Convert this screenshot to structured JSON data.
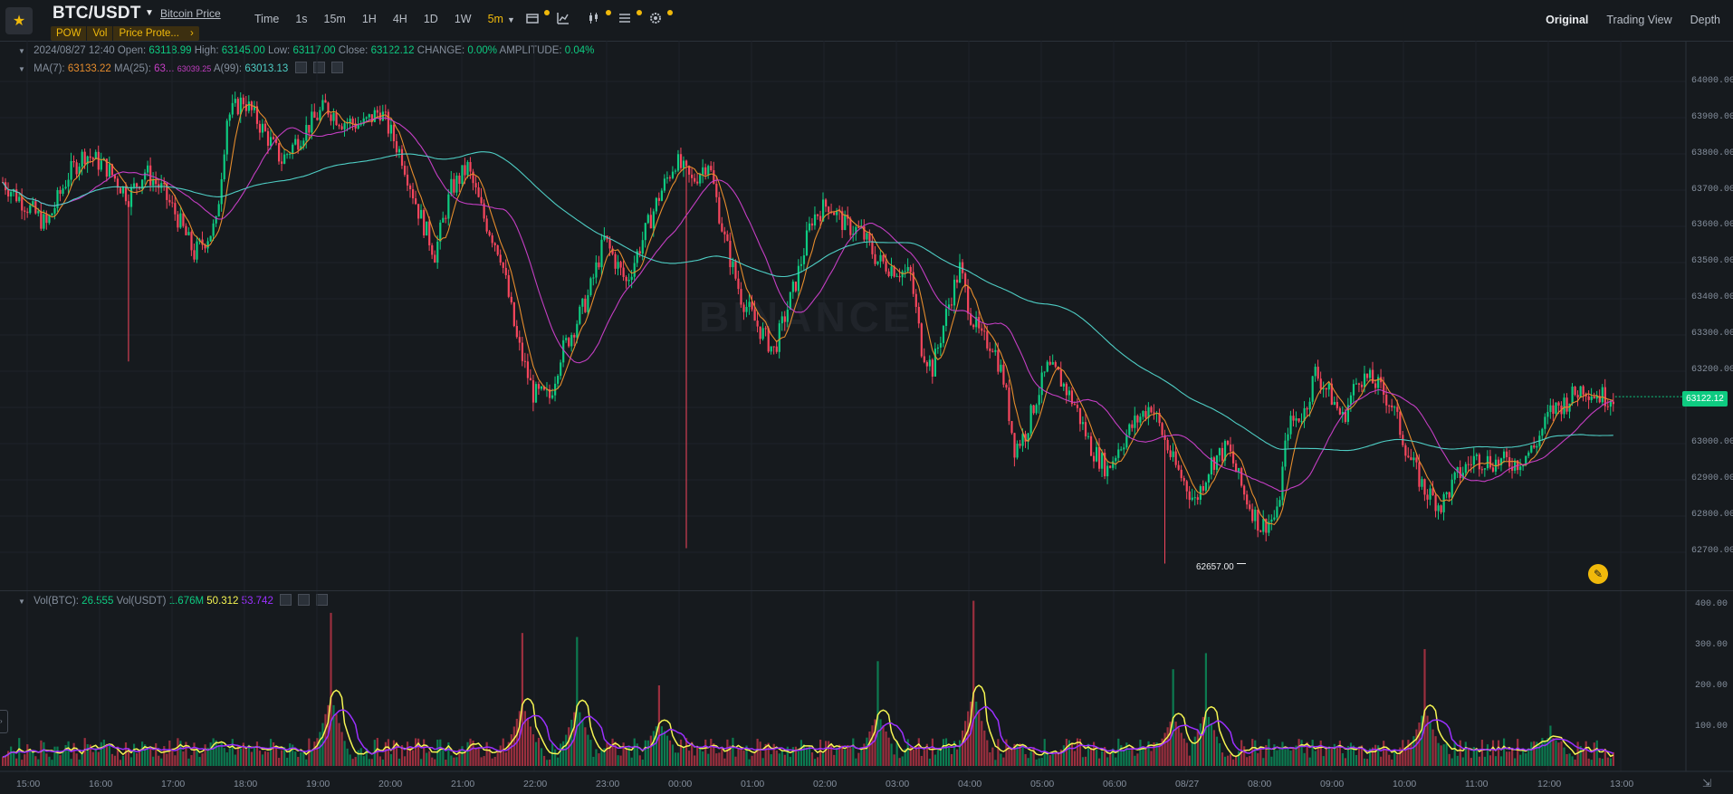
{
  "header": {
    "pair": "BTC/USDT",
    "price_link": "Bitcoin Price",
    "tags": [
      "POW",
      "Vol",
      "Price Prote...",
      "›"
    ],
    "intervals": [
      "Time",
      "1s",
      "15m",
      "1H",
      "4H",
      "1D",
      "1W",
      "5m"
    ],
    "active_interval": "5m",
    "views": [
      "Original",
      "Trading View",
      "Depth"
    ],
    "active_view": "Original",
    "tool_icons": [
      "indicator-icon",
      "chart-type-icon",
      "candle-settings-icon",
      "layout-icon",
      "settings-icon"
    ]
  },
  "ohlc": {
    "datetime": "2024/08/27 12:40",
    "open_label": "Open:",
    "open": "63118.99",
    "high_label": "High:",
    "high": "63145.00",
    "low_label": "Low:",
    "low": "63117.00",
    "close_label": "Close:",
    "close": "63122.12",
    "change_label": "CHANGE:",
    "change": "0.00%",
    "amplitude_label": "AMPLITUDE:",
    "amplitude": "0.04%"
  },
  "ma": {
    "ma7_label": "MA(7):",
    "ma7": "63133.22",
    "ma25_label": "MA(25):",
    "ma25": "63...",
    "ma99_label": "A(99):",
    "ma99": "63013.13",
    "overlap_text": "63039.25"
  },
  "volume": {
    "label_btc": "Vol(BTC):",
    "vol_btc": "26.555",
    "label_usdt": "Vol(USDT)",
    "vol_usdt": "1.676M",
    "ma1": "50.312",
    "ma2": "53.742"
  },
  "price_axis": [
    "64000.00",
    "63900.00",
    "63800.00",
    "63700.00",
    "63600.00",
    "63500.00",
    "63400.00",
    "63300.00",
    "63200.00",
    "63000.00",
    "62900.00",
    "62800.00",
    "62700.00"
  ],
  "volume_axis": [
    "400.00",
    "300.00",
    "200.00",
    "100.00"
  ],
  "time_axis": [
    "15:00",
    "16:00",
    "17:00",
    "18:00",
    "19:00",
    "20:00",
    "21:00",
    "22:00",
    "23:00",
    "00:00",
    "01:00",
    "02:00",
    "03:00",
    "04:00",
    "05:00",
    "06:00",
    "08/27",
    "08:00",
    "09:00",
    "10:00",
    "11:00",
    "12:00",
    "13:00"
  ],
  "current_price": "63122.12",
  "low_marker": "62657.00",
  "watermark": "BINANCE",
  "colors": {
    "up": "#0ecb81",
    "down": "#f6465d",
    "accent": "#f0b90b",
    "ma7": "#e58c2d",
    "ma25": "#c43ec3",
    "ma99": "#4ecdc4",
    "vma1": "#f5f552",
    "vma2": "#9b30ff"
  },
  "chart_data": {
    "type": "candlestick",
    "x_label": "",
    "y_label": "",
    "ylim": [
      62600,
      64060
    ],
    "price_path": [
      [
        0,
        63720
      ],
      [
        8,
        63660
      ],
      [
        16,
        63600
      ],
      [
        24,
        63740
      ],
      [
        30,
        63800
      ],
      [
        38,
        63760
      ],
      [
        46,
        63680
      ],
      [
        52,
        63750
      ],
      [
        58,
        63700
      ],
      [
        64,
        63620
      ],
      [
        70,
        63520
      ],
      [
        78,
        63600
      ],
      [
        82,
        63900
      ],
      [
        88,
        63950
      ],
      [
        94,
        63880
      ],
      [
        102,
        63780
      ],
      [
        110,
        63860
      ],
      [
        118,
        63930
      ],
      [
        124,
        63890
      ],
      [
        132,
        63880
      ],
      [
        138,
        63920
      ],
      [
        146,
        63790
      ],
      [
        152,
        63640
      ],
      [
        158,
        63520
      ],
      [
        164,
        63700
      ],
      [
        170,
        63760
      ],
      [
        176,
        63620
      ],
      [
        182,
        63520
      ],
      [
        188,
        63280
      ],
      [
        194,
        63130
      ],
      [
        200,
        63120
      ],
      [
        204,
        63240
      ],
      [
        208,
        63300
      ],
      [
        214,
        63400
      ],
      [
        220,
        63560
      ],
      [
        228,
        63440
      ],
      [
        234,
        63560
      ],
      [
        240,
        63680
      ],
      [
        246,
        63780
      ],
      [
        252,
        63720
      ],
      [
        258,
        63780
      ],
      [
        264,
        63560
      ],
      [
        270,
        63400
      ],
      [
        276,
        63320
      ],
      [
        282,
        63250
      ],
      [
        290,
        63440
      ],
      [
        296,
        63620
      ],
      [
        302,
        63660
      ],
      [
        308,
        63600
      ],
      [
        314,
        63580
      ],
      [
        320,
        63500
      ],
      [
        326,
        63480
      ],
      [
        332,
        63460
      ],
      [
        336,
        63260
      ],
      [
        340,
        63200
      ],
      [
        346,
        63380
      ],
      [
        350,
        63480
      ],
      [
        354,
        63350
      ],
      [
        358,
        63280
      ],
      [
        362,
        63270
      ],
      [
        366,
        63170
      ],
      [
        370,
        62980
      ],
      [
        374,
        63020
      ],
      [
        378,
        63120
      ],
      [
        382,
        63200
      ],
      [
        386,
        63180
      ],
      [
        392,
        63100
      ],
      [
        398,
        62980
      ],
      [
        404,
        62920
      ],
      [
        408,
        62980
      ],
      [
        414,
        63050
      ],
      [
        420,
        63100
      ],
      [
        428,
        62940
      ],
      [
        436,
        62830
      ],
      [
        442,
        62940
      ],
      [
        448,
        62980
      ],
      [
        454,
        62850
      ],
      [
        460,
        62760
      ],
      [
        466,
        62790
      ],
      [
        470,
        63040
      ],
      [
        476,
        63080
      ],
      [
        480,
        63190
      ],
      [
        486,
        63120
      ],
      [
        490,
        63060
      ],
      [
        496,
        63180
      ],
      [
        502,
        63160
      ],
      [
        508,
        63100
      ],
      [
        514,
        62960
      ],
      [
        520,
        62860
      ],
      [
        526,
        62820
      ],
      [
        532,
        62900
      ],
      [
        538,
        62950
      ],
      [
        546,
        62940
      ],
      [
        554,
        62940
      ],
      [
        560,
        62980
      ],
      [
        566,
        63080
      ],
      [
        572,
        63110
      ],
      [
        578,
        63150
      ],
      [
        582,
        63130
      ],
      [
        586,
        63122
      ]
    ],
    "volume_peaks": [
      [
        120,
        380
      ],
      [
        190,
        330
      ],
      [
        210,
        320
      ],
      [
        240,
        200
      ],
      [
        320,
        260
      ],
      [
        355,
        410
      ],
      [
        428,
        240
      ],
      [
        440,
        280
      ],
      [
        520,
        290
      ],
      [
        566,
        100
      ]
    ]
  }
}
